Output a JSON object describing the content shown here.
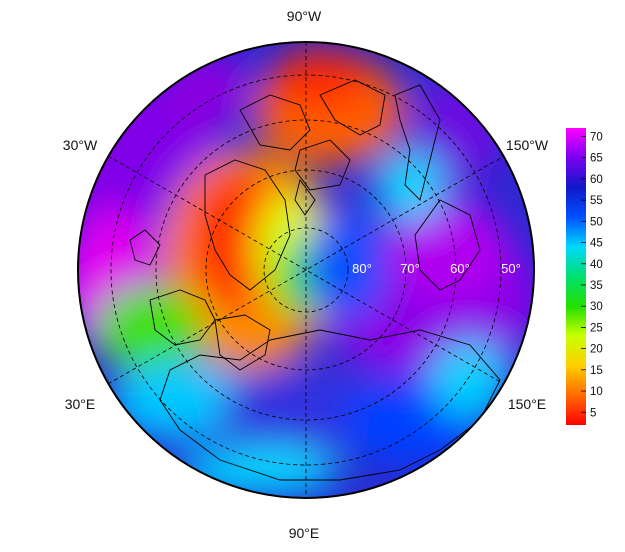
{
  "map": {
    "projection": "north-polar-stereographic",
    "longitude_labels": [
      {
        "text": "90°W",
        "position": "top"
      },
      {
        "text": "30°W",
        "position": "upper-left"
      },
      {
        "text": "150°W",
        "position": "upper-right"
      },
      {
        "text": "30°E",
        "position": "lower-left"
      },
      {
        "text": "150°E",
        "position": "lower-right"
      },
      {
        "text": "90°E",
        "position": "bottom"
      }
    ],
    "latitude_labels": [
      "80°",
      "70°",
      "60°",
      "50°"
    ],
    "graticule": "dashed"
  },
  "colorbar": {
    "ticks": [
      "5",
      "10",
      "15",
      "20",
      "25",
      "30",
      "35",
      "40",
      "45",
      "50",
      "55",
      "60",
      "65",
      "70"
    ],
    "range": [
      2,
      72
    ],
    "stops": [
      "#ff0000",
      "#ff6a00",
      "#ffd000",
      "#c8ff00",
      "#22e000",
      "#00e070",
      "#00d8ff",
      "#0050ff",
      "#1018c8",
      "#7a00f0",
      "#ff00ff"
    ]
  }
}
